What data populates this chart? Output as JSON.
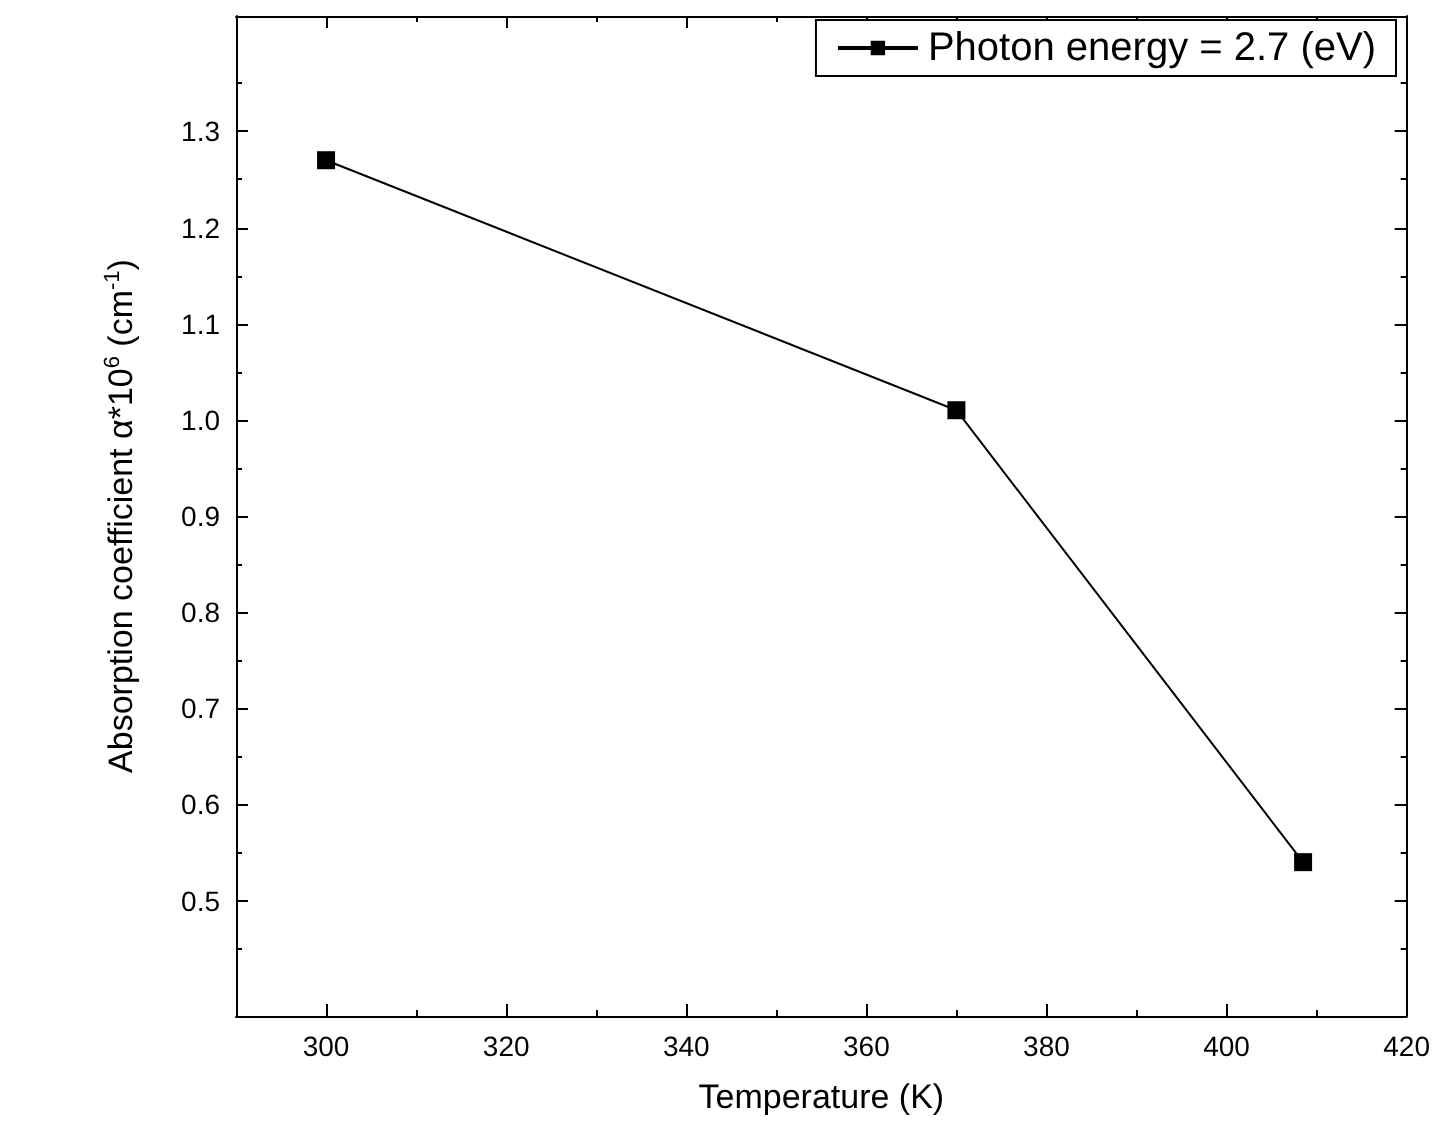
{
  "chart_data": {
    "type": "line",
    "xlabel": "Temperature (K)",
    "ylabel": "Absorption coefficient α*10$^{6}$ (cm$^{-1}$)",
    "x": [
      300,
      370,
      408.5
    ],
    "series": [
      {
        "name": "Photon energy = 2.7 (eV)",
        "color": "#000000",
        "values": [
          1.27,
          1.01,
          0.54
        ]
      }
    ],
    "xlim": [
      290,
      420
    ],
    "xticks": [
      300,
      320,
      340,
      360,
      380,
      400,
      420
    ],
    "ylim": [
      0.38,
      1.42
    ],
    "yticks": [
      0.5,
      0.6,
      0.7,
      0.8,
      0.9,
      {
        "value": 1.0,
        "label": "1.0"
      },
      1.1,
      1.2,
      1.3
    ],
    "marker": "square",
    "line_style": "solid",
    "grid": false,
    "legend": "top right"
  }
}
